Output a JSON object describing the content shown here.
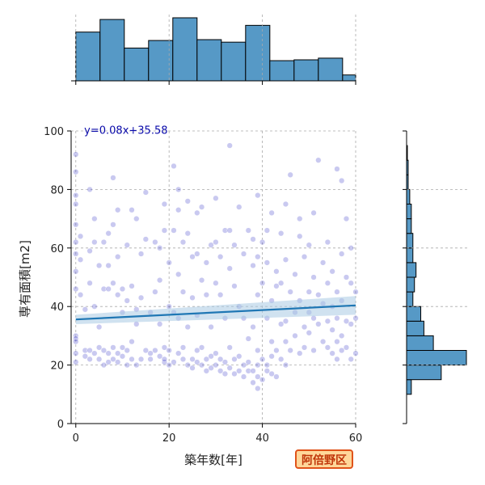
{
  "chart_data": {
    "type": "scatter",
    "xlabel": "築年数[年]",
    "ylabel": "専有面積[m2]",
    "xlim": [
      -1,
      60
    ],
    "ylim": [
      0,
      100
    ],
    "x_ticks": [
      0,
      20,
      40,
      60
    ],
    "y_ticks": [
      0,
      20,
      40,
      60,
      80,
      100
    ],
    "grid": true,
    "regression": {
      "equation": "y=0.08x+35.58",
      "slope": 0.08,
      "intercept": 35.58
    },
    "marginal_x_hist": {
      "bins": [
        0,
        5.2,
        10.4,
        15.6,
        20.8,
        26,
        31.2,
        36.4,
        41.6,
        46.8,
        52,
        57.2,
        60
      ],
      "counts": [
        58,
        73,
        39,
        48,
        75,
        49,
        46,
        66,
        24,
        25,
        27,
        7
      ]
    },
    "marginal_y_hist": {
      "bins": [
        10,
        15,
        20,
        25,
        30,
        35,
        40,
        45,
        50,
        55,
        60,
        65,
        70,
        75,
        80,
        85,
        90,
        95
      ],
      "counts": [
        3,
        22,
        38,
        17,
        11,
        9,
        4,
        5,
        6,
        4,
        4,
        3,
        3,
        2,
        1,
        1,
        0.5
      ]
    },
    "scatter_points": [
      [
        0,
        92
      ],
      [
        0,
        86
      ],
      [
        0,
        78
      ],
      [
        0,
        75
      ],
      [
        0,
        68
      ],
      [
        0,
        62
      ],
      [
        0,
        58
      ],
      [
        0,
        52
      ],
      [
        0,
        46
      ],
      [
        0,
        30
      ],
      [
        0,
        29
      ],
      [
        0,
        28
      ],
      [
        0,
        24
      ],
      [
        0,
        21
      ],
      [
        1,
        64
      ],
      [
        1,
        56
      ],
      [
        1,
        44
      ],
      [
        2,
        25
      ],
      [
        2,
        23
      ],
      [
        2,
        39
      ],
      [
        3,
        25
      ],
      [
        3,
        22
      ],
      [
        3,
        48
      ],
      [
        3,
        59
      ],
      [
        3,
        80
      ],
      [
        4,
        62
      ],
      [
        4,
        70
      ],
      [
        4,
        24
      ],
      [
        4,
        40
      ],
      [
        5,
        26
      ],
      [
        5,
        22
      ],
      [
        5,
        54
      ],
      [
        5,
        33
      ],
      [
        6,
        20
      ],
      [
        6,
        25
      ],
      [
        6,
        46
      ],
      [
        6,
        62
      ],
      [
        7,
        24
      ],
      [
        7,
        21
      ],
      [
        7,
        46
      ],
      [
        7,
        65
      ],
      [
        7,
        54
      ],
      [
        8,
        22
      ],
      [
        8,
        26
      ],
      [
        8,
        84
      ],
      [
        8,
        68
      ],
      [
        8,
        48
      ],
      [
        9,
        24
      ],
      [
        9,
        21
      ],
      [
        9,
        44
      ],
      [
        9,
        57
      ],
      [
        9,
        73
      ],
      [
        10,
        23
      ],
      [
        10,
        26
      ],
      [
        10,
        46
      ],
      [
        10,
        38
      ],
      [
        11,
        20
      ],
      [
        11,
        25
      ],
      [
        11,
        42
      ],
      [
        11,
        61
      ],
      [
        12,
        22
      ],
      [
        12,
        28
      ],
      [
        12,
        47
      ],
      [
        12,
        73
      ],
      [
        13,
        20
      ],
      [
        13,
        34
      ],
      [
        13,
        70
      ],
      [
        13,
        39
      ],
      [
        14,
        22
      ],
      [
        14,
        43
      ],
      [
        14,
        58
      ],
      [
        15,
        25
      ],
      [
        15,
        63
      ],
      [
        15,
        79
      ],
      [
        16,
        22
      ],
      [
        16,
        38
      ],
      [
        16,
        24
      ],
      [
        17,
        25
      ],
      [
        17,
        62
      ],
      [
        17,
        45
      ],
      [
        18,
        23
      ],
      [
        18,
        49
      ],
      [
        18,
        60
      ],
      [
        18,
        34
      ],
      [
        19,
        21
      ],
      [
        19,
        22
      ],
      [
        19,
        26
      ],
      [
        19,
        75
      ],
      [
        19,
        66
      ],
      [
        20,
        20
      ],
      [
        20,
        25
      ],
      [
        20,
        40
      ],
      [
        20,
        55
      ],
      [
        21,
        21
      ],
      [
        21,
        88
      ],
      [
        21,
        66
      ],
      [
        21,
        38
      ],
      [
        22,
        24
      ],
      [
        22,
        80
      ],
      [
        22,
        73
      ],
      [
        22,
        51
      ],
      [
        22,
        36
      ],
      [
        23,
        26
      ],
      [
        23,
        22
      ],
      [
        23,
        62
      ],
      [
        23,
        45
      ],
      [
        24,
        20
      ],
      [
        24,
        33
      ],
      [
        24,
        65
      ],
      [
        24,
        76
      ],
      [
        25,
        22
      ],
      [
        25,
        19
      ],
      [
        25,
        43
      ],
      [
        25,
        57
      ],
      [
        26,
        21
      ],
      [
        26,
        25
      ],
      [
        26,
        58
      ],
      [
        26,
        37
      ],
      [
        26,
        72
      ],
      [
        27,
        20
      ],
      [
        27,
        26
      ],
      [
        27,
        49
      ],
      [
        27,
        74
      ],
      [
        28,
        22
      ],
      [
        28,
        18
      ],
      [
        28,
        55
      ],
      [
        28,
        44
      ],
      [
        29,
        19
      ],
      [
        29,
        23
      ],
      [
        29,
        61
      ],
      [
        29,
        33
      ],
      [
        30,
        20
      ],
      [
        30,
        24
      ],
      [
        30,
        62
      ],
      [
        30,
        48
      ],
      [
        30,
        77
      ],
      [
        31,
        18
      ],
      [
        31,
        22
      ],
      [
        31,
        57
      ],
      [
        31,
        44
      ],
      [
        32,
        21
      ],
      [
        32,
        17
      ],
      [
        32,
        66
      ],
      [
        32,
        36
      ],
      [
        33,
        19
      ],
      [
        33,
        26
      ],
      [
        33,
        95
      ],
      [
        33,
        53
      ],
      [
        33,
        66
      ],
      [
        34,
        17
      ],
      [
        34,
        22
      ],
      [
        34,
        47
      ],
      [
        34,
        61
      ],
      [
        35,
        18
      ],
      [
        35,
        23
      ],
      [
        35,
        74
      ],
      [
        35,
        40
      ],
      [
        36,
        20
      ],
      [
        36,
        16
      ],
      [
        36,
        58
      ],
      [
        36,
        36
      ],
      [
        37,
        18
      ],
      [
        37,
        21
      ],
      [
        37,
        66
      ],
      [
        37,
        29
      ],
      [
        38,
        14
      ],
      [
        38,
        18
      ],
      [
        38,
        33
      ],
      [
        38,
        54
      ],
      [
        38,
        63
      ],
      [
        39,
        12
      ],
      [
        39,
        16
      ],
      [
        39,
        20
      ],
      [
        39,
        25
      ],
      [
        39,
        44
      ],
      [
        39,
        57
      ],
      [
        39,
        78
      ],
      [
        40,
        15
      ],
      [
        40,
        22
      ],
      [
        40,
        48
      ],
      [
        40,
        62
      ],
      [
        41,
        18
      ],
      [
        41,
        20
      ],
      [
        41,
        36
      ],
      [
        41,
        55
      ],
      [
        41,
        66
      ],
      [
        42,
        17
      ],
      [
        42,
        23
      ],
      [
        42,
        28
      ],
      [
        42,
        42
      ],
      [
        42,
        72
      ],
      [
        43,
        16
      ],
      [
        43,
        25
      ],
      [
        43,
        47
      ],
      [
        43,
        52
      ],
      [
        44,
        22
      ],
      [
        44,
        34
      ],
      [
        44,
        48
      ],
      [
        44,
        65
      ],
      [
        45,
        20
      ],
      [
        45,
        28
      ],
      [
        45,
        35
      ],
      [
        45,
        56
      ],
      [
        45,
        75
      ],
      [
        46,
        25
      ],
      [
        46,
        45
      ],
      [
        46,
        85
      ],
      [
        47,
        30
      ],
      [
        47,
        38
      ],
      [
        47,
        51
      ],
      [
        48,
        24
      ],
      [
        48,
        42
      ],
      [
        48,
        64
      ],
      [
        48,
        70
      ],
      [
        49,
        26
      ],
      [
        49,
        33
      ],
      [
        49,
        57
      ],
      [
        50,
        31
      ],
      [
        50,
        38
      ],
      [
        50,
        45
      ],
      [
        50,
        61
      ],
      [
        51,
        25
      ],
      [
        51,
        36
      ],
      [
        51,
        50
      ],
      [
        51,
        72
      ],
      [
        52,
        34
      ],
      [
        52,
        44
      ],
      [
        52,
        90
      ],
      [
        53,
        28
      ],
      [
        53,
        41
      ],
      [
        53,
        55
      ],
      [
        54,
        26
      ],
      [
        54,
        35
      ],
      [
        54,
        48
      ],
      [
        54,
        62
      ],
      [
        55,
        24
      ],
      [
        55,
        32
      ],
      [
        55,
        40
      ],
      [
        55,
        52
      ],
      [
        56,
        22
      ],
      [
        56,
        28
      ],
      [
        56,
        36
      ],
      [
        56,
        45
      ],
      [
        56,
        87
      ],
      [
        57,
        25
      ],
      [
        57,
        30
      ],
      [
        57,
        42
      ],
      [
        57,
        58
      ],
      [
        57,
        83
      ],
      [
        58,
        26
      ],
      [
        58,
        35
      ],
      [
        58,
        50
      ],
      [
        58,
        70
      ],
      [
        59,
        22
      ],
      [
        59,
        34
      ],
      [
        59,
        48
      ],
      [
        59,
        60
      ],
      [
        60,
        24
      ],
      [
        60,
        36
      ],
      [
        60,
        45
      ]
    ],
    "colors": {
      "point": "#3c3cc8",
      "bar": "#5699c6",
      "line": "#1f77b4",
      "band": "#a9cbe3",
      "grid": "#aaaaaa",
      "equation": "#0a0aaa"
    }
  },
  "badge": {
    "label": "阿倍野区"
  }
}
